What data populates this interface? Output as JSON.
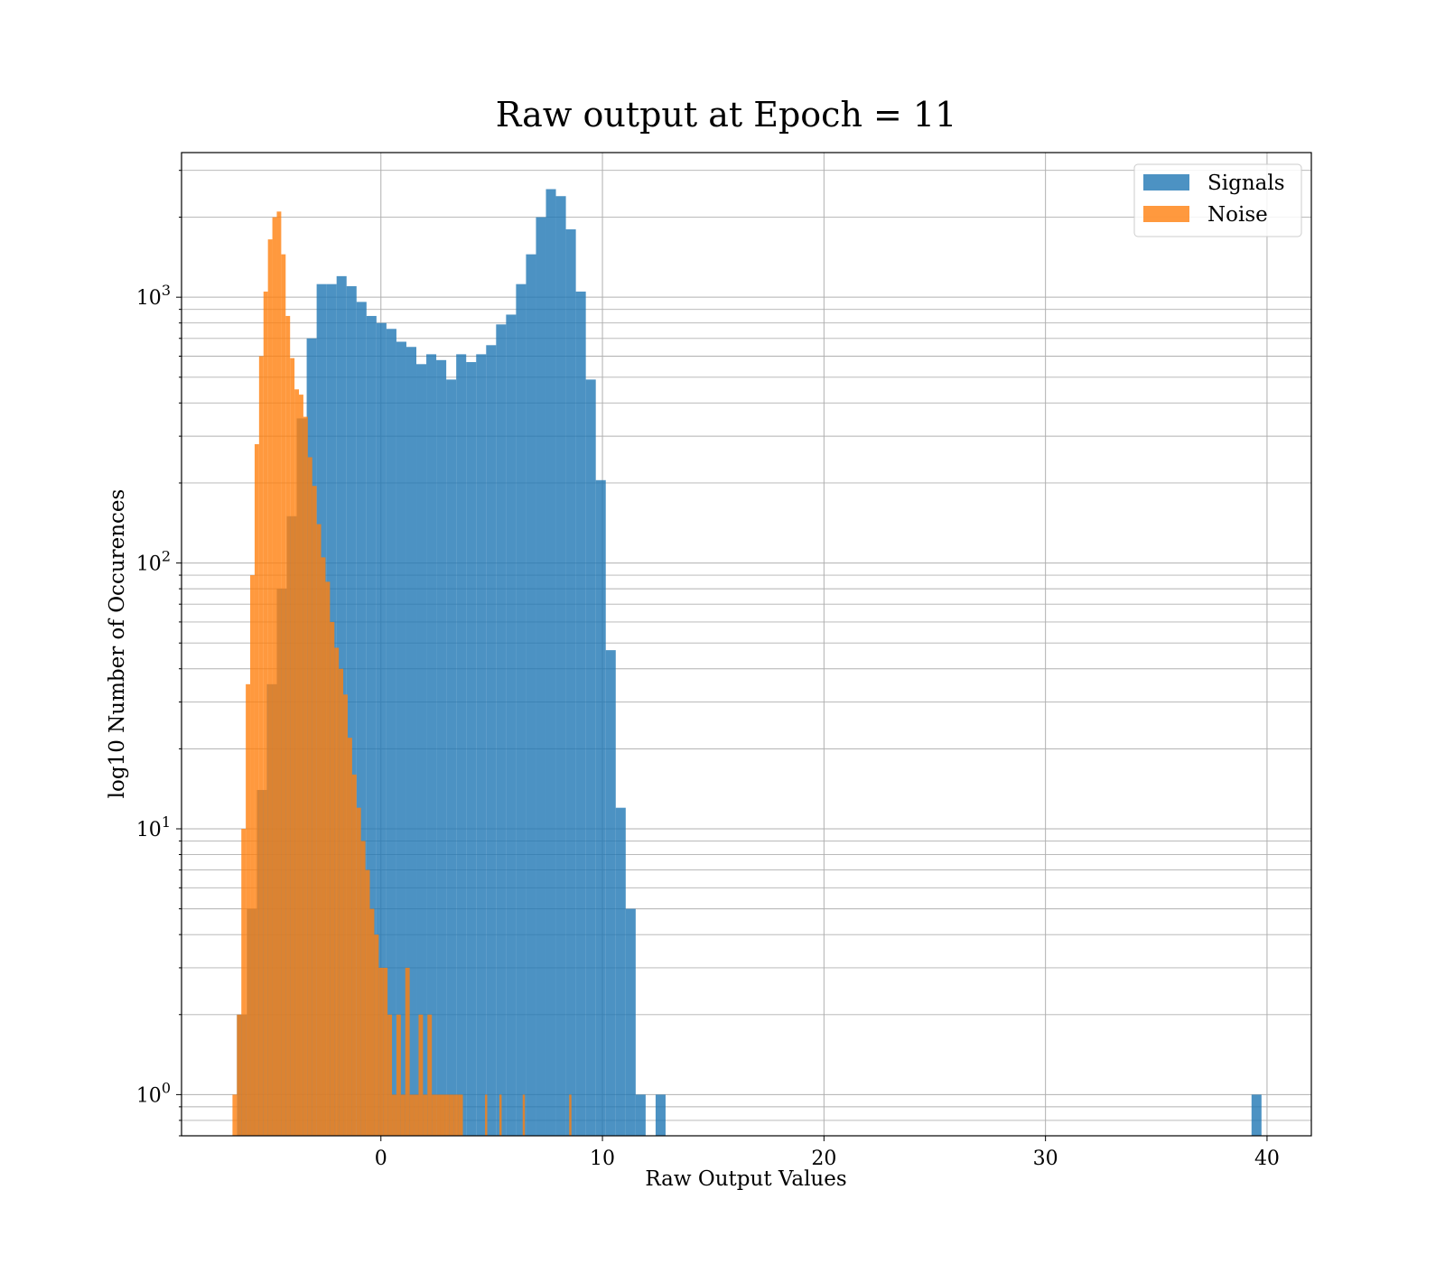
{
  "chart_data": {
    "type": "bar",
    "title": "Raw output at Epoch = 11",
    "xlabel": "Raw Output Values",
    "ylabel": "log10 Number of Occurences",
    "xlim": [
      -9,
      42
    ],
    "ylim": [
      0.7,
      3500
    ],
    "yscale": "log",
    "grid": true,
    "legend_position": "top-right",
    "xticks": [
      {
        "value": 0,
        "label": "0"
      },
      {
        "value": 10,
        "label": "10"
      },
      {
        "value": 20,
        "label": "20"
      },
      {
        "value": 30,
        "label": "30"
      },
      {
        "value": 40,
        "label": "40"
      }
    ],
    "yticks": [
      {
        "value": 1,
        "base": "10",
        "exp": "0"
      },
      {
        "value": 10,
        "base": "10",
        "exp": "1"
      },
      {
        "value": 100,
        "base": "10",
        "exp": "2"
      },
      {
        "value": 1000,
        "base": "10",
        "exp": "3"
      }
    ],
    "series": [
      {
        "name": "Signals",
        "color": "#1f77b4",
        "opacity": 0.8,
        "bin_edges": [
          -6.5,
          -6.05,
          -5.6,
          -5.15,
          -4.7,
          -4.25,
          -3.8,
          -3.35,
          -2.9,
          -2.45,
          -2.0,
          -1.55,
          -1.1,
          -0.65,
          -0.2,
          0.25,
          0.7,
          1.15,
          1.6,
          2.05,
          2.5,
          2.95,
          3.4,
          3.85,
          4.3,
          4.75,
          5.2,
          5.65,
          6.1,
          6.55,
          7.0,
          7.45,
          7.9,
          8.35,
          8.8,
          9.25,
          9.7,
          10.15,
          10.6,
          11.05,
          11.5,
          11.95,
          12.4,
          12.85
        ],
        "counts": [
          2,
          5,
          14,
          35,
          80,
          150,
          350,
          700,
          1120,
          1120,
          1200,
          1100,
          960,
          850,
          800,
          760,
          680,
          650,
          560,
          610,
          580,
          490,
          610,
          570,
          610,
          660,
          790,
          860,
          1120,
          1450,
          2000,
          2550,
          2400,
          1800,
          1050,
          490,
          205,
          47,
          12,
          5,
          1,
          0,
          1
        ],
        "outliers": [
          {
            "x0": 39.3,
            "x1": 39.75,
            "count": 1
          }
        ]
      },
      {
        "name": "Noise",
        "color": "#ff7f0e",
        "opacity": 0.8,
        "bin_edges": [
          -6.7,
          -6.5,
          -6.3,
          -6.1,
          -5.9,
          -5.7,
          -5.5,
          -5.3,
          -5.1,
          -4.9,
          -4.7,
          -4.5,
          -4.3,
          -4.1,
          -3.9,
          -3.7,
          -3.5,
          -3.3,
          -3.1,
          -2.9,
          -2.7,
          -2.5,
          -2.3,
          -2.1,
          -1.9,
          -1.7,
          -1.5,
          -1.3,
          -1.1,
          -0.9,
          -0.7,
          -0.5,
          -0.3,
          -0.1,
          0.1,
          0.3,
          0.5,
          0.7,
          0.9,
          1.1,
          1.3,
          1.5,
          1.7,
          1.9,
          2.1,
          2.3,
          2.5,
          2.7,
          2.9,
          3.1,
          3.3,
          3.5,
          3.7
        ],
        "counts": [
          1,
          2,
          10,
          35,
          90,
          280,
          600,
          1050,
          1650,
          2000,
          2100,
          1450,
          850,
          590,
          450,
          430,
          355,
          250,
          195,
          140,
          105,
          85,
          60,
          48,
          40,
          32,
          22,
          16,
          12,
          9,
          7,
          5,
          4,
          3,
          3,
          2,
          1,
          2,
          1,
          3,
          1,
          1,
          2,
          1,
          2,
          1,
          1,
          1,
          1,
          1,
          1,
          1
        ],
        "extras": [
          {
            "x0": 4.7,
            "x1": 4.8,
            "count": 1
          },
          {
            "x0": 5.35,
            "x1": 5.45,
            "count": 1
          },
          {
            "x0": 6.4,
            "x1": 6.5,
            "count": 1
          },
          {
            "x0": 8.5,
            "x1": 8.6,
            "count": 1
          }
        ]
      }
    ]
  }
}
